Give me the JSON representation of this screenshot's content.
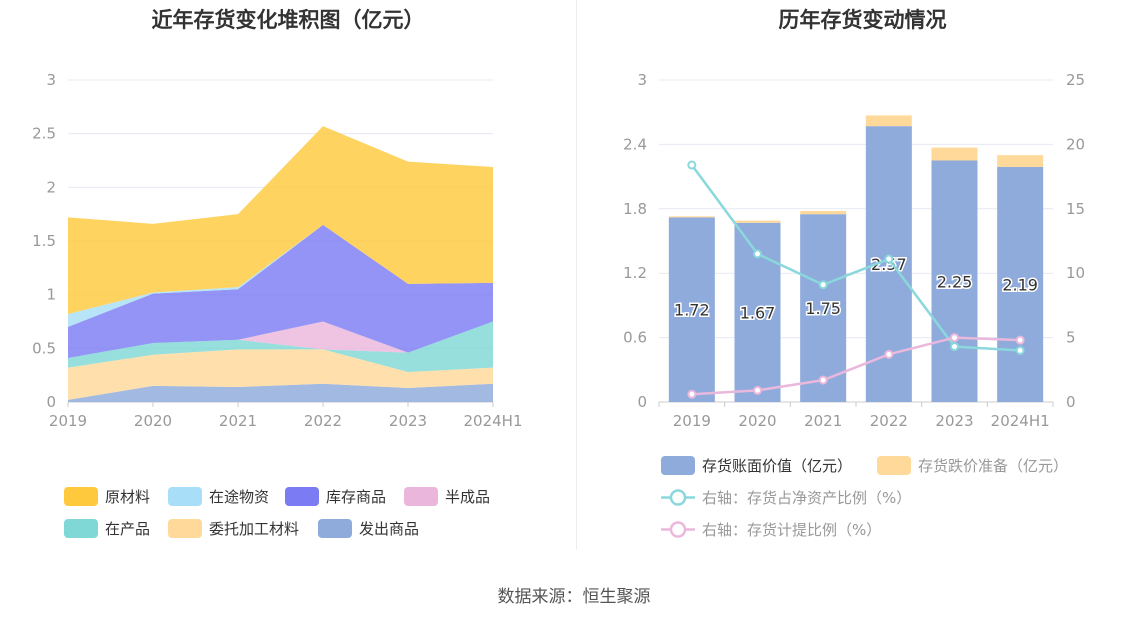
{
  "source_text": "数据来源：恒生聚源",
  "colors": {
    "raw_materials": "#ffc93d",
    "in_transit": "#a8def7",
    "inventory_goods": "#7b7cf3",
    "semi_finished": "#ebb6dc",
    "in_process": "#7fd8d6",
    "consigned_materials": "#ffd99a",
    "shipped_goods": "#8eabdb",
    "book_value": "#8eabdb",
    "impairment": "#ffd99a",
    "ratio_net_assets": "#8ad8dc",
    "provision_ratio": "#eab8dc"
  },
  "chart_data": [
    {
      "type": "area",
      "stacked": true,
      "title": "近年存货变化堆积图（亿元）",
      "x": [
        "2019",
        "2020",
        "2021",
        "2022",
        "2023",
        "2024H1"
      ],
      "ylim": [
        0,
        3
      ],
      "yticks": [
        "0",
        "0.5",
        "1",
        "1.5",
        "2",
        "2.5",
        "3"
      ],
      "grid": true,
      "legend_position": "bottom",
      "series": [
        {
          "name": "发出商品",
          "color_key": "shipped_goods",
          "values": [
            0.02,
            0.15,
            0.14,
            0.17,
            0.13,
            0.17
          ]
        },
        {
          "name": "委托加工材料",
          "color_key": "consigned_materials",
          "values": [
            0.3,
            0.29,
            0.35,
            0.32,
            0.15,
            0.15
          ]
        },
        {
          "name": "在产品",
          "color_key": "in_process",
          "values": [
            0.09,
            0.11,
            0.09,
            0.0,
            0.18,
            0.43
          ]
        },
        {
          "name": "半成品",
          "color_key": "semi_finished",
          "values": [
            0.0,
            0.0,
            0.0,
            0.26,
            0.0,
            0.0
          ]
        },
        {
          "name": "库存商品",
          "color_key": "inventory_goods",
          "values": [
            0.29,
            0.46,
            0.47,
            0.9,
            0.64,
            0.36
          ]
        },
        {
          "name": "在途物资",
          "color_key": "in_transit",
          "values": [
            0.12,
            0.01,
            0.02,
            0.0,
            0.0,
            0.0
          ]
        },
        {
          "name": "原材料",
          "color_key": "raw_materials",
          "values": [
            0.9,
            0.64,
            0.68,
            0.92,
            1.14,
            1.08
          ]
        }
      ]
    },
    {
      "type": "bar",
      "stacked": true,
      "title": "历年存货变动情况",
      "categories": [
        "2019",
        "2020",
        "2021",
        "2022",
        "2023",
        "2024H1"
      ],
      "ylim": [
        0,
        3
      ],
      "yticks": [
        "0",
        "0.6",
        "1.2",
        "1.8",
        "2.4",
        "3"
      ],
      "y2lim": [
        0,
        25
      ],
      "y2ticks": [
        "0",
        "5",
        "10",
        "15",
        "20",
        "25"
      ],
      "grid": true,
      "legend_position": "bottom",
      "series": [
        {
          "name": "存货账面价值（亿元）",
          "color_key": "book_value",
          "values": [
            1.72,
            1.67,
            1.75,
            2.57,
            2.25,
            2.19
          ],
          "labels": [
            "1.72",
            "1.67",
            "1.75",
            "2.57",
            "2.25",
            "2.19"
          ]
        },
        {
          "name": "存货跌价准备（亿元）",
          "color_key": "impairment",
          "values": [
            0.01,
            0.02,
            0.03,
            0.1,
            0.12,
            0.11
          ]
        }
      ],
      "line_series": [
        {
          "name": "右轴：存货占净资产比例（%）",
          "color_key": "ratio_net_assets",
          "axis": "right",
          "values": [
            18.4,
            11.5,
            9.1,
            11.1,
            4.3,
            4.0
          ]
        },
        {
          "name": "右轴：存货计提比例（%）",
          "color_key": "provision_ratio",
          "axis": "right",
          "values": [
            0.6,
            0.9,
            1.7,
            3.7,
            5.0,
            4.8
          ]
        }
      ]
    }
  ]
}
